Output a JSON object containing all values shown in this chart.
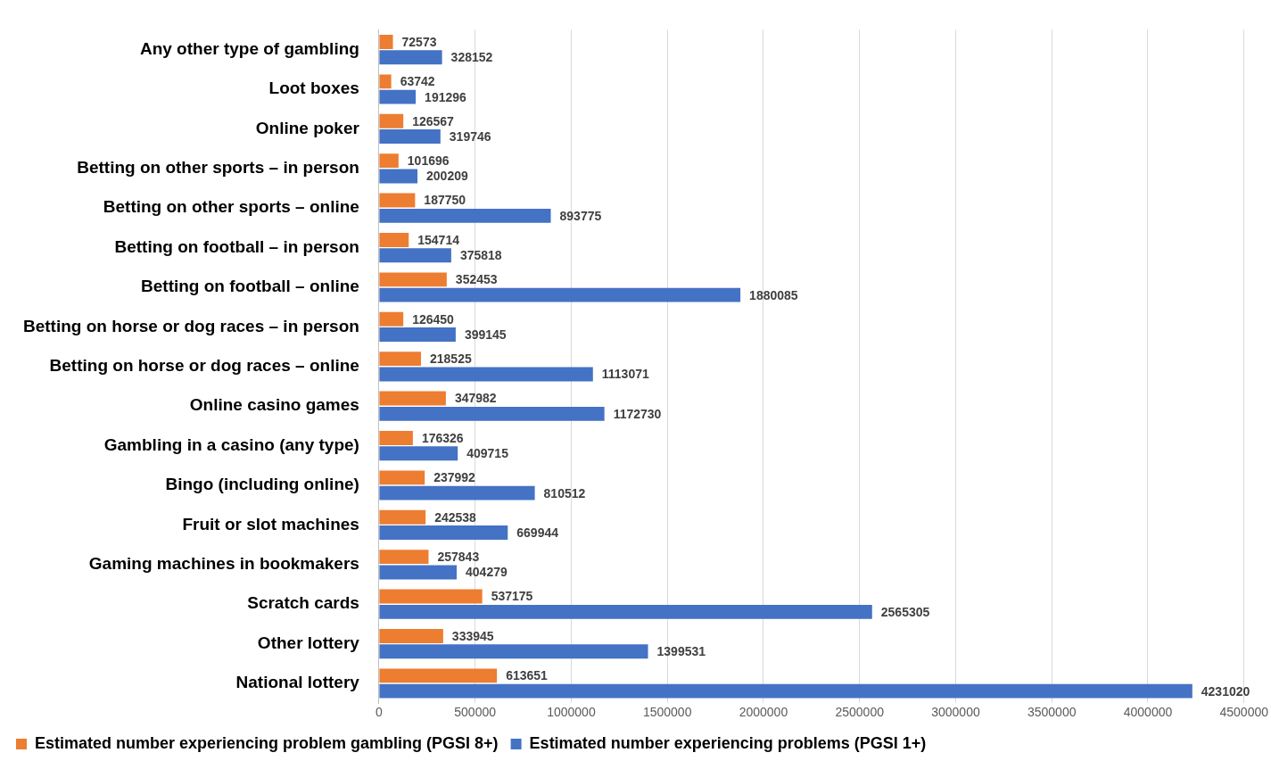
{
  "chart_data": {
    "type": "bar",
    "orientation": "horizontal",
    "categories": [
      "Any other type of gambling",
      "Loot boxes",
      "Online poker",
      "Betting on other sports – in person",
      "Betting on other sports – online",
      "Betting on football – in person",
      "Betting on football – online",
      "Betting on horse or dog races – in person",
      "Betting on horse or dog races – online",
      "Online casino games",
      "Gambling in a casino (any type)",
      "Bingo (including online)",
      "Fruit or slot machines",
      "Gaming machines in bookmakers",
      "Scratch cards",
      "Other lottery",
      "National lottery"
    ],
    "series": [
      {
        "name": "Estimated number experiencing problem gambling (PGSI 8+)",
        "color": "#ed7d31",
        "values": [
          72573,
          63742,
          126567,
          101696,
          187750,
          154714,
          352453,
          126450,
          218525,
          347982,
          176326,
          237992,
          242538,
          257843,
          537175,
          333945,
          613651
        ]
      },
      {
        "name": "Estimated number experiencing problems (PGSI 1+)",
        "color": "#4472c4",
        "values": [
          328152,
          191296,
          319746,
          200209,
          893775,
          375818,
          1880085,
          399145,
          1113071,
          1172730,
          409715,
          810512,
          669944,
          404279,
          2565305,
          1399531,
          4231020
        ]
      }
    ],
    "xlim": [
      0,
      4500000
    ],
    "xticks": [
      0,
      500000,
      1000000,
      1500000,
      2000000,
      2500000,
      3000000,
      3500000,
      4000000,
      4500000
    ],
    "grid": "x",
    "legend": "bottom",
    "data_labels": true
  }
}
